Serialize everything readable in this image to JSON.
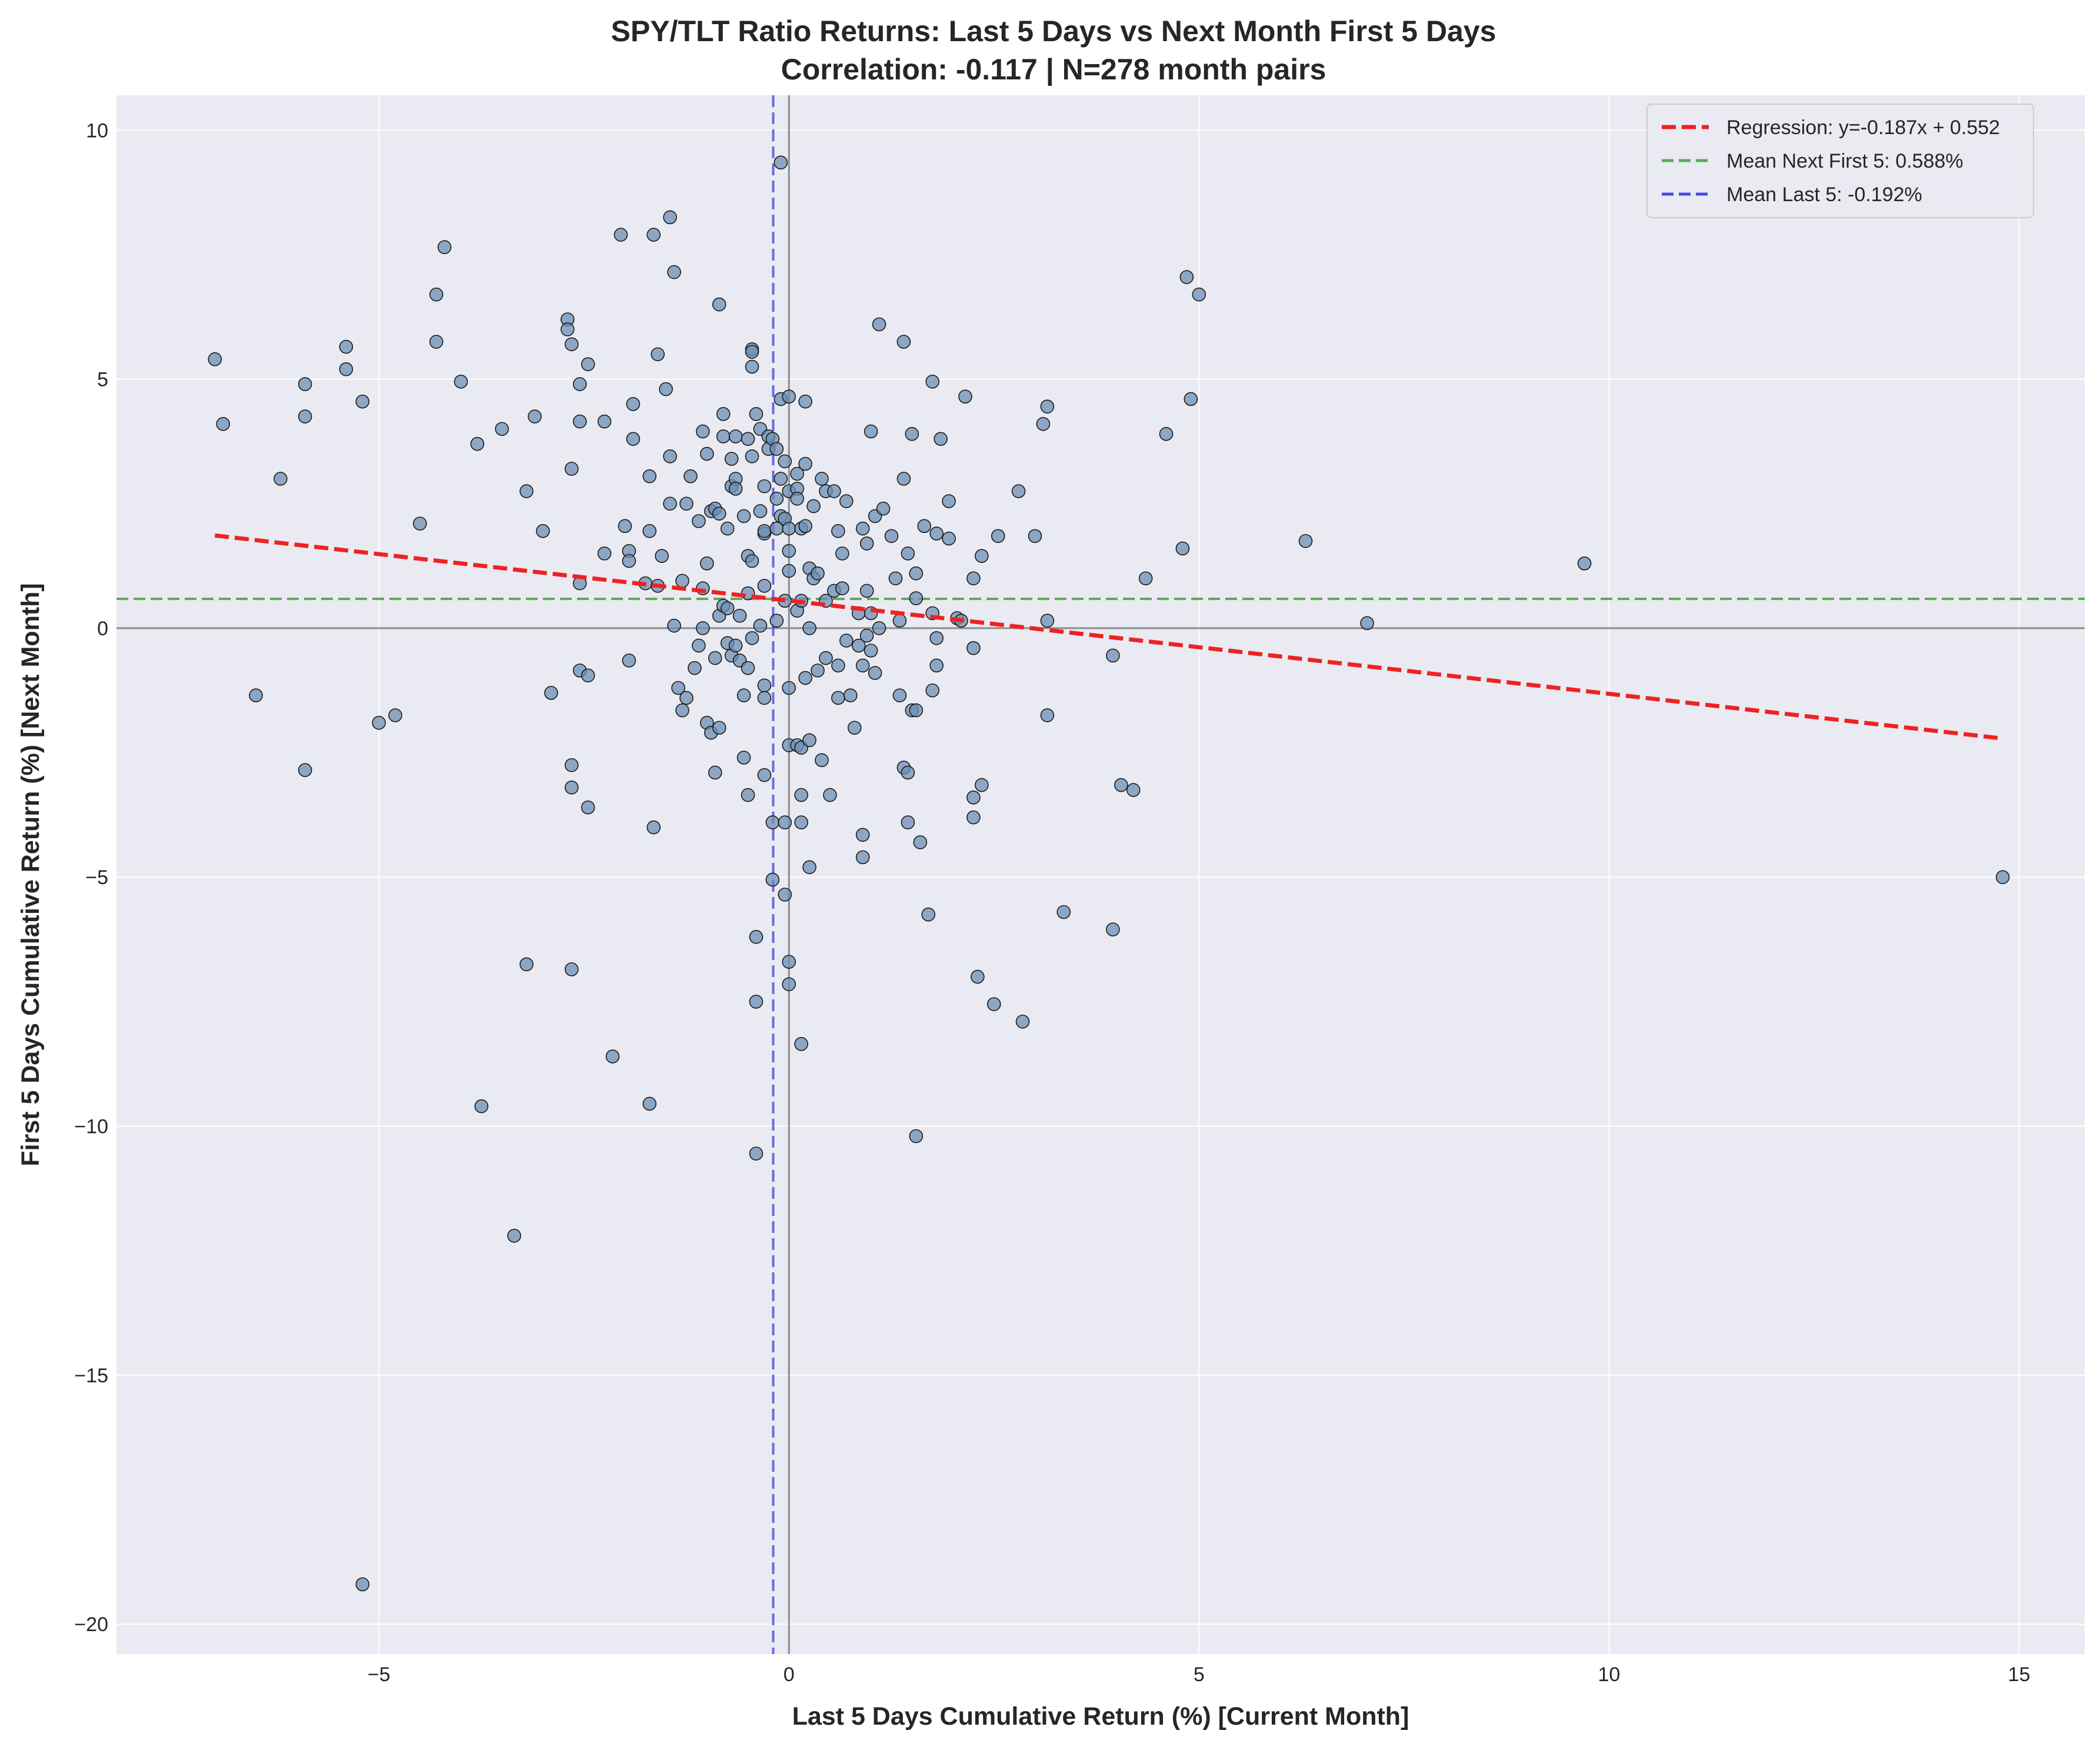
{
  "chart_data": {
    "type": "scatter",
    "title": "SPY/TLT Ratio Returns: Last 5 Days vs Next Month First 5 Days",
    "subtitle": "Correlation: -0.117 | N=278 month pairs",
    "xlabel": "Last 5 Days Cumulative Return (%) [Current Month]",
    "ylabel": "First 5 Days Cumulative Return (%) [Next Month]",
    "xlim": [
      -8.2,
      15.8
    ],
    "ylim": [
      -20.6,
      10.7
    ],
    "xticks": [
      -5,
      0,
      5,
      10,
      15
    ],
    "yticks": [
      -20,
      -15,
      -10,
      -5,
      0,
      5,
      10
    ],
    "xtick_labels": [
      "−5",
      "0",
      "5",
      "10",
      "15"
    ],
    "ytick_labels": [
      "−20",
      "−15",
      "−10",
      "−5",
      "0",
      "5",
      "10"
    ],
    "grid": true,
    "legend_position": "top-right",
    "colors": {
      "background": "#eaeaf2",
      "grid": "#ffffff",
      "point_fill": "#6c8fb3",
      "point_edge": "#1a1a1a",
      "regression": "#ee2222",
      "mean_next": "#5aa85a",
      "mean_last": "#4848e0",
      "zero_line": "#8c8c8c"
    },
    "regression": {
      "label": "Regression: y=-0.187x + 0.552",
      "slope": -0.187,
      "intercept": 0.552,
      "x_range": [
        -7.0,
        14.8
      ]
    },
    "mean_next_first5": {
      "label": "Mean Next First 5: 0.588%",
      "value": 0.588
    },
    "mean_last5": {
      "label": "Mean Last 5: -0.192%",
      "value": -0.192
    },
    "points": [
      [
        -7.0,
        5.4
      ],
      [
        -6.9,
        4.1
      ],
      [
        -6.5,
        -1.35
      ],
      [
        -6.2,
        3.0
      ],
      [
        -5.9,
        4.9
      ],
      [
        -5.9,
        4.25
      ],
      [
        -5.9,
        -2.85
      ],
      [
        -5.4,
        5.65
      ],
      [
        -5.4,
        5.2
      ],
      [
        -5.2,
        4.55
      ],
      [
        -5.2,
        -19.2
      ],
      [
        -5.0,
        -1.9
      ],
      [
        -4.8,
        -1.75
      ],
      [
        -4.5,
        2.1
      ],
      [
        -4.3,
        6.7
      ],
      [
        -4.3,
        5.75
      ],
      [
        -4.2,
        7.65
      ],
      [
        -4.0,
        4.95
      ],
      [
        -3.8,
        3.7
      ],
      [
        -3.75,
        -9.6
      ],
      [
        -3.5,
        4.0
      ],
      [
        -3.35,
        -12.2
      ],
      [
        -3.2,
        2.75
      ],
      [
        -3.2,
        -6.75
      ],
      [
        -3.1,
        4.25
      ],
      [
        -3.0,
        1.95
      ],
      [
        -2.9,
        -1.3
      ],
      [
        -2.7,
        6.2
      ],
      [
        -2.7,
        6.0
      ],
      [
        -2.65,
        5.7
      ],
      [
        -2.65,
        3.2
      ],
      [
        -2.65,
        -2.75
      ],
      [
        -2.65,
        -3.2
      ],
      [
        -2.65,
        -6.85
      ],
      [
        -2.55,
        4.9
      ],
      [
        -2.55,
        4.15
      ],
      [
        -2.55,
        0.9
      ],
      [
        -2.55,
        -0.85
      ],
      [
        -2.45,
        5.3
      ],
      [
        -2.45,
        -0.95
      ],
      [
        -2.45,
        -3.6
      ],
      [
        -2.25,
        4.15
      ],
      [
        -2.25,
        1.5
      ],
      [
        -2.15,
        -8.6
      ],
      [
        -2.05,
        7.9
      ],
      [
        -2.0,
        2.05
      ],
      [
        -1.95,
        1.55
      ],
      [
        -1.95,
        1.35
      ],
      [
        -1.95,
        -0.65
      ],
      [
        -1.9,
        4.5
      ],
      [
        -1.9,
        3.8
      ],
      [
        -1.75,
        0.9
      ],
      [
        -1.7,
        3.05
      ],
      [
        -1.7,
        1.95
      ],
      [
        -1.7,
        -9.55
      ],
      [
        -1.65,
        7.9
      ],
      [
        -1.65,
        -4.0
      ],
      [
        -1.6,
        5.5
      ],
      [
        -1.6,
        0.85
      ],
      [
        -1.55,
        1.45
      ],
      [
        -1.5,
        4.8
      ],
      [
        -1.45,
        3.45
      ],
      [
        -1.45,
        2.5
      ],
      [
        -1.45,
        8.25
      ],
      [
        -1.4,
        7.15
      ],
      [
        -1.4,
        0.05
      ],
      [
        -1.35,
        -1.2
      ],
      [
        -1.3,
        0.95
      ],
      [
        -1.3,
        -1.65
      ],
      [
        -1.25,
        2.5
      ],
      [
        -1.25,
        -1.4
      ],
      [
        -1.2,
        3.05
      ],
      [
        -1.15,
        -0.8
      ],
      [
        -1.1,
        2.15
      ],
      [
        -1.1,
        -0.35
      ],
      [
        -1.05,
        3.95
      ],
      [
        -1.05,
        0.8
      ],
      [
        -1.05,
        0.0
      ],
      [
        -1.0,
        3.5
      ],
      [
        -1.0,
        1.3
      ],
      [
        -1.0,
        -1.9
      ],
      [
        -0.95,
        2.35
      ],
      [
        -0.95,
        -2.1
      ],
      [
        -0.9,
        2.4
      ],
      [
        -0.9,
        -0.6
      ],
      [
        -0.9,
        -2.9
      ],
      [
        -0.85,
        6.5
      ],
      [
        -0.85,
        2.3
      ],
      [
        -0.85,
        0.25
      ],
      [
        -0.85,
        -2.0
      ],
      [
        -0.8,
        4.3
      ],
      [
        -0.8,
        3.85
      ],
      [
        -0.8,
        0.45
      ],
      [
        -0.75,
        2.0
      ],
      [
        -0.75,
        0.4
      ],
      [
        -0.75,
        -0.3
      ],
      [
        -0.7,
        3.4
      ],
      [
        -0.7,
        2.85
      ],
      [
        -0.7,
        -0.55
      ],
      [
        -0.65,
        3.85
      ],
      [
        -0.65,
        3.0
      ],
      [
        -0.65,
        2.8
      ],
      [
        -0.65,
        -0.35
      ],
      [
        -0.6,
        0.25
      ],
      [
        -0.6,
        -0.65
      ],
      [
        -0.55,
        2.25
      ],
      [
        -0.55,
        -1.35
      ],
      [
        -0.55,
        -2.6
      ],
      [
        -0.5,
        3.8
      ],
      [
        -0.5,
        1.45
      ],
      [
        -0.5,
        0.7
      ],
      [
        -0.5,
        -0.8
      ],
      [
        -0.5,
        -3.35
      ],
      [
        -0.45,
        5.6
      ],
      [
        -0.45,
        5.55
      ],
      [
        -0.45,
        5.25
      ],
      [
        -0.45,
        3.45
      ],
      [
        -0.45,
        1.35
      ],
      [
        -0.45,
        -0.2
      ],
      [
        -0.4,
        4.3
      ],
      [
        -0.4,
        -6.2
      ],
      [
        -0.4,
        -7.5
      ],
      [
        -0.4,
        -10.55
      ],
      [
        -0.35,
        4.0
      ],
      [
        -0.35,
        2.35
      ],
      [
        -0.35,
        0.05
      ],
      [
        -0.3,
        2.85
      ],
      [
        -0.3,
        1.9
      ],
      [
        -0.3,
        1.95
      ],
      [
        -0.3,
        0.85
      ],
      [
        -0.3,
        -1.15
      ],
      [
        -0.3,
        -1.4
      ],
      [
        -0.3,
        -2.95
      ],
      [
        -0.25,
        3.85
      ],
      [
        -0.25,
        3.6
      ],
      [
        -0.2,
        3.8
      ],
      [
        -0.2,
        -3.9
      ],
      [
        -0.2,
        -5.05
      ],
      [
        -0.15,
        3.6
      ],
      [
        -0.15,
        2.6
      ],
      [
        -0.15,
        2.0
      ],
      [
        -0.15,
        0.15
      ],
      [
        -0.1,
        9.35
      ],
      [
        -0.1,
        4.6
      ],
      [
        -0.1,
        3.0
      ],
      [
        -0.1,
        2.25
      ],
      [
        -0.05,
        3.35
      ],
      [
        -0.05,
        2.2
      ],
      [
        -0.05,
        0.55
      ],
      [
        -0.05,
        -3.9
      ],
      [
        -0.05,
        -5.35
      ],
      [
        0.0,
        4.65
      ],
      [
        0.0,
        2.75
      ],
      [
        0.0,
        2.0
      ],
      [
        0.0,
        1.55
      ],
      [
        0.0,
        1.15
      ],
      [
        0.0,
        -1.2
      ],
      [
        0.0,
        -2.35
      ],
      [
        0.0,
        -6.7
      ],
      [
        0.0,
        -7.15
      ],
      [
        0.1,
        3.1
      ],
      [
        0.1,
        2.8
      ],
      [
        0.1,
        2.6
      ],
      [
        0.1,
        0.35
      ],
      [
        0.1,
        -2.35
      ],
      [
        0.15,
        2.0
      ],
      [
        0.15,
        0.55
      ],
      [
        0.15,
        -2.4
      ],
      [
        0.15,
        -3.35
      ],
      [
        0.15,
        -3.9
      ],
      [
        0.15,
        -8.35
      ],
      [
        0.2,
        4.55
      ],
      [
        0.2,
        3.3
      ],
      [
        0.2,
        2.05
      ],
      [
        0.2,
        -1.0
      ],
      [
        0.25,
        1.2
      ],
      [
        0.25,
        0.0
      ],
      [
        0.25,
        -2.25
      ],
      [
        0.25,
        -4.8
      ],
      [
        0.3,
        2.45
      ],
      [
        0.3,
        1.0
      ],
      [
        0.35,
        1.1
      ],
      [
        0.35,
        -0.85
      ],
      [
        0.4,
        3.0
      ],
      [
        0.4,
        -2.65
      ],
      [
        0.45,
        2.75
      ],
      [
        0.45,
        0.55
      ],
      [
        0.45,
        -0.6
      ],
      [
        0.5,
        -3.35
      ],
      [
        0.55,
        2.75
      ],
      [
        0.55,
        0.75
      ],
      [
        0.6,
        1.95
      ],
      [
        0.6,
        -0.75
      ],
      [
        0.6,
        -1.4
      ],
      [
        0.65,
        1.5
      ],
      [
        0.65,
        0.8
      ],
      [
        0.7,
        2.55
      ],
      [
        0.7,
        -0.25
      ],
      [
        0.75,
        -1.35
      ],
      [
        0.8,
        -2.0
      ],
      [
        0.85,
        0.3
      ],
      [
        0.85,
        -0.35
      ],
      [
        0.9,
        2.0
      ],
      [
        0.9,
        -0.75
      ],
      [
        0.9,
        -4.15
      ],
      [
        0.9,
        -4.6
      ],
      [
        0.95,
        1.7
      ],
      [
        0.95,
        0.75
      ],
      [
        0.95,
        -0.15
      ],
      [
        1.0,
        3.95
      ],
      [
        1.0,
        0.3
      ],
      [
        1.0,
        -0.45
      ],
      [
        1.05,
        2.25
      ],
      [
        1.05,
        -0.9
      ],
      [
        1.1,
        6.1
      ],
      [
        1.1,
        0.0
      ],
      [
        1.15,
        2.4
      ],
      [
        1.25,
        1.85
      ],
      [
        1.3,
        1.0
      ],
      [
        1.35,
        0.15
      ],
      [
        1.35,
        -1.35
      ],
      [
        1.4,
        5.75
      ],
      [
        1.4,
        3.0
      ],
      [
        1.4,
        -2.8
      ],
      [
        1.45,
        1.5
      ],
      [
        1.45,
        -2.9
      ],
      [
        1.45,
        -3.9
      ],
      [
        1.5,
        3.9
      ],
      [
        1.5,
        -1.65
      ],
      [
        1.55,
        1.1
      ],
      [
        1.55,
        0.6
      ],
      [
        1.55,
        -1.65
      ],
      [
        1.55,
        -10.2
      ],
      [
        1.6,
        -4.3
      ],
      [
        1.65,
        2.05
      ],
      [
        1.7,
        -5.75
      ],
      [
        1.75,
        4.95
      ],
      [
        1.75,
        0.3
      ],
      [
        1.75,
        -1.25
      ],
      [
        1.8,
        1.9
      ],
      [
        1.8,
        -0.2
      ],
      [
        1.8,
        -0.75
      ],
      [
        1.85,
        3.8
      ],
      [
        1.95,
        2.55
      ],
      [
        1.95,
        1.8
      ],
      [
        2.05,
        0.2
      ],
      [
        2.1,
        0.15
      ],
      [
        2.15,
        4.65
      ],
      [
        2.25,
        1.0
      ],
      [
        2.25,
        -0.4
      ],
      [
        2.25,
        -3.4
      ],
      [
        2.25,
        -3.8
      ],
      [
        2.3,
        -7.0
      ],
      [
        2.35,
        1.45
      ],
      [
        2.35,
        -3.15
      ],
      [
        2.5,
        -7.55
      ],
      [
        2.55,
        1.85
      ],
      [
        2.8,
        2.75
      ],
      [
        2.85,
        -7.9
      ],
      [
        3.0,
        1.85
      ],
      [
        3.1,
        4.1
      ],
      [
        3.15,
        4.45
      ],
      [
        3.15,
        0.15
      ],
      [
        3.15,
        -1.75
      ],
      [
        3.35,
        -5.7
      ],
      [
        3.95,
        -0.55
      ],
      [
        3.95,
        -6.05
      ],
      [
        4.05,
        -3.15
      ],
      [
        4.2,
        -3.25
      ],
      [
        4.35,
        1.0
      ],
      [
        4.6,
        3.9
      ],
      [
        4.8,
        1.6
      ],
      [
        4.85,
        7.05
      ],
      [
        4.9,
        4.6
      ],
      [
        5.0,
        6.7
      ],
      [
        6.3,
        1.75
      ],
      [
        7.05,
        0.1
      ],
      [
        9.7,
        1.3
      ],
      [
        14.8,
        -5.0
      ]
    ]
  }
}
